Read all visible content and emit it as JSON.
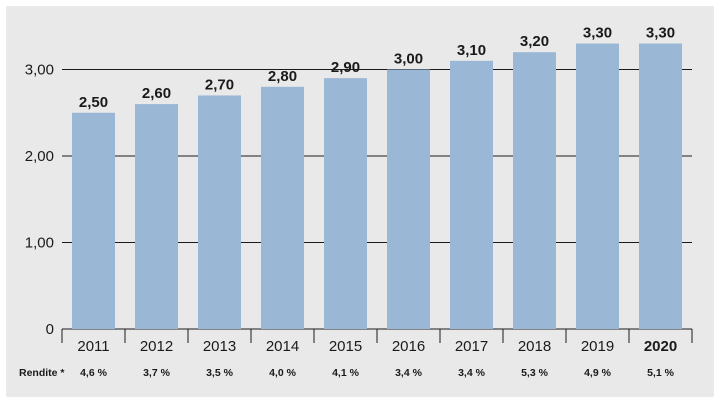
{
  "chart_data": {
    "type": "bar",
    "categories": [
      "2011",
      "2012",
      "2013",
      "2014",
      "2015",
      "2016",
      "2017",
      "2018",
      "2019",
      "2020"
    ],
    "highlighted_category": "2020",
    "values": [
      2.5,
      2.6,
      2.7,
      2.8,
      2.9,
      3.0,
      3.1,
      3.2,
      3.3,
      3.3
    ],
    "value_labels": [
      "2,50",
      "2,60",
      "2,70",
      "2,80",
      "2,90",
      "3,00",
      "3,10",
      "3,20",
      "3,30",
      "3,30"
    ],
    "y_ticks": [
      {
        "value": 0,
        "label": "0"
      },
      {
        "value": 1,
        "label": "1,00"
      },
      {
        "value": 2,
        "label": "2,00"
      },
      {
        "value": 3,
        "label": "3,00"
      }
    ],
    "ylim": [
      0,
      3.4
    ],
    "grid": true,
    "title": "",
    "xlabel": "",
    "ylabel": "",
    "yield_row": {
      "label": "Rendite *",
      "values": [
        "4,6 %",
        "3,7 %",
        "3,5 %",
        "4,0 %",
        "4,1 %",
        "3,4 %",
        "3,4 %",
        "5,3 %",
        "4,9 %",
        "5,1 %"
      ]
    },
    "colors": {
      "bar": "#9ab7d6",
      "background": "#e9e9e9",
      "grid": "#1a1a1a"
    }
  }
}
